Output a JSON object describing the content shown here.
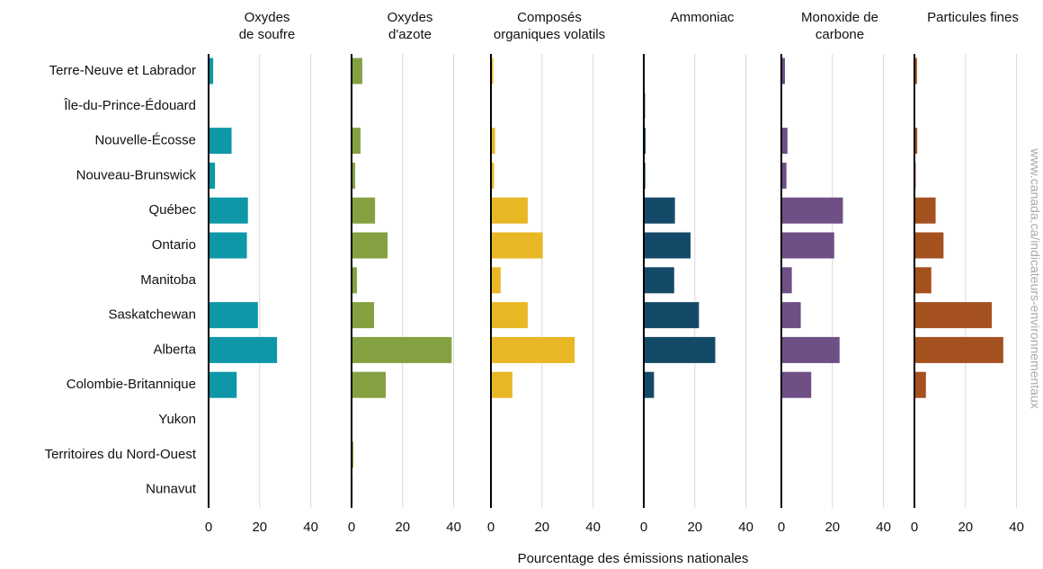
{
  "chart_data": {
    "type": "bar",
    "orientation": "horizontal",
    "categories": [
      "Terre-Neuve et Labrador",
      "Île-du-Prince-Édouard",
      "Nouvelle-Écosse",
      "Nouveau-Brunswick",
      "Québec",
      "Ontario",
      "Manitoba",
      "Saskatchewan",
      "Alberta",
      "Colombie-Britannique",
      "Yukon",
      "Territoires du Nord-Ouest",
      "Nunavut"
    ],
    "series": [
      {
        "name": "Oxydes\nde soufre",
        "color": "#0e97a6",
        "values": [
          1.8,
          0.1,
          9,
          2.5,
          15.4,
          15,
          0.2,
          19.3,
          26.8,
          11,
          0,
          0,
          0
        ]
      },
      {
        "name": "Oxydes\nd'azote",
        "color": "#84a142",
        "values": [
          4.2,
          0.2,
          3.5,
          1.4,
          9.2,
          14.1,
          2.1,
          8.8,
          39.2,
          13.4,
          0.1,
          0.7,
          0.4
        ]
      },
      {
        "name": "Composés\norganiques volatils",
        "color": "#e8b725",
        "values": [
          0.9,
          0,
          1.6,
          1.2,
          14.4,
          20.3,
          3.8,
          14.4,
          32.8,
          8.4,
          0,
          0,
          0
        ]
      },
      {
        "name": "Ammoniac",
        "color": "#144a68",
        "values": [
          0.3,
          0.5,
          0.7,
          0.6,
          12.2,
          18.3,
          11.9,
          21.6,
          28,
          4,
          0,
          0,
          0
        ]
      },
      {
        "name": "Monoxide de\ncarbone",
        "color": "#6e4f86",
        "values": [
          1.4,
          0.1,
          2.4,
          2,
          24.1,
          20.7,
          4.1,
          7.6,
          22.8,
          11.7,
          0,
          0,
          0
        ]
      },
      {
        "name": "Particules fines",
        "color": "#a5501f",
        "values": [
          1,
          0.1,
          1.1,
          0.5,
          8.3,
          11.4,
          6.6,
          30.3,
          34.8,
          4.5,
          0,
          0,
          0
        ]
      }
    ],
    "xlim": [
      0,
      50
    ],
    "xticks": [
      0,
      20,
      40
    ],
    "grid": true,
    "xlabel": "Pourcentage des émissions nationales",
    "source": "www.canada.ca/indicateurs-environnementaux"
  }
}
